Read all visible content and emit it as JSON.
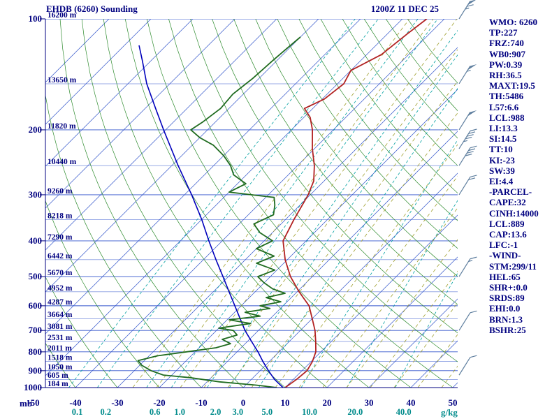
{
  "header": {
    "title": "EHDB (6260) Sounding",
    "datetime": "1200Z 11 DEC 25"
  },
  "axes": {
    "pressure_unit": "mb",
    "mixing_unit": "g/kg",
    "pressure_labels": [
      100,
      200,
      300,
      400,
      500,
      600,
      700,
      800,
      900,
      1000
    ],
    "altitude_labels": [
      {
        "p": 100,
        "m": "16200 m"
      },
      {
        "p": 150,
        "m": "13650 m"
      },
      {
        "p": 200,
        "m": "11820 m"
      },
      {
        "p": 250,
        "m": "10440 m"
      },
      {
        "p": 300,
        "m": "9260 m"
      },
      {
        "p": 350,
        "m": "8218 m"
      },
      {
        "p": 400,
        "m": "7290 m"
      },
      {
        "p": 450,
        "m": "6442 m"
      },
      {
        "p": 500,
        "m": "5670 m"
      },
      {
        "p": 550,
        "m": "4952 m"
      },
      {
        "p": 600,
        "m": "4287 m"
      },
      {
        "p": 650,
        "m": "3664 m"
      },
      {
        "p": 700,
        "m": "3081 m"
      },
      {
        "p": 750,
        "m": "2531 m"
      },
      {
        "p": 800,
        "m": "2011 m"
      },
      {
        "p": 850,
        "m": "1518 m"
      },
      {
        "p": 900,
        "m": "1050 m"
      },
      {
        "p": 950,
        "m": "605 m"
      },
      {
        "p": 1000,
        "m": "184 m"
      }
    ],
    "temp_labels": [
      -50,
      -40,
      -30,
      -20,
      -10,
      0,
      10,
      20,
      30,
      40,
      50
    ],
    "mixing_labels": [
      "0.1",
      "0.2",
      "0.6",
      "1.0",
      "2.0",
      "3.0",
      "5.0",
      "10.0",
      "20.0",
      "40.0"
    ]
  },
  "indices": {
    "lines": [
      "WMO: 6260",
      "TP:227",
      "FRZ:740",
      "WB0:907",
      "PW:0.39",
      "RH:36.5",
      "MAXT:19.5",
      "TH:5486",
      "L57:6.6",
      "LCL:988",
      "LI:13.3",
      "SI:14.5",
      "TT:10",
      "KI:-23",
      "SW:39",
      "EI:4.4",
      "-PARCEL-",
      "CAPE:32",
      "CINH:14000",
      "LCL:889",
      "CAP:13.6",
      "LFC:-1",
      "-WIND-",
      "STM:299/11",
      "HEL:65",
      "SHR+:0.0",
      "SRDS:89",
      "EHI:0.0",
      "BRN:1.3",
      "BSHR:25"
    ]
  },
  "colors": {
    "text_navy": "#000080",
    "grid_blue": "#3355cc",
    "isotherm_blue": "#3355cc",
    "dry_adiabat_green": "#2d8b2d",
    "mixing_cyan": "#00a0a0",
    "mixing_label_teal": "#008b8b",
    "moist_guide_olive": "#a0a030",
    "temperature_red": "#b22222",
    "dewpoint_green": "#1f6b1f",
    "parcel_blue": "#0000bb",
    "barb": "#5f7f9f"
  },
  "chart_data": {
    "type": "line",
    "subtype": "skewt-log-p-sounding",
    "title": "EHDB (6260) Sounding",
    "valid_time": "1200Z 11 DEC 25",
    "pressure_range_mb": [
      100,
      1000
    ],
    "surface_temp_axis_range_c": [
      -50,
      50
    ],
    "skew_deg": 45,
    "isotherm_step_c": 10,
    "isotherm_range_c": [
      -120,
      50
    ],
    "dry_adiabat_thetaC": {
      "from": -50,
      "to": 160,
      "step": 10
    },
    "mixing_ratio_lines_gkg": [
      0.1,
      0.2,
      0.6,
      1.0,
      2.0,
      3.0,
      5.0,
      10.0,
      20.0,
      40.0
    ],
    "series": {
      "temperature_p_t": [
        [
          1000,
          10
        ],
        [
          950,
          10.8
        ],
        [
          900,
          11.2
        ],
        [
          850,
          10.3
        ],
        [
          800,
          8.8
        ],
        [
          750,
          6.3
        ],
        [
          700,
          3.5
        ],
        [
          650,
          0
        ],
        [
          600,
          -3.8
        ],
        [
          550,
          -9.5
        ],
        [
          500,
          -15.2
        ],
        [
          450,
          -20.5
        ],
        [
          400,
          -25.5
        ],
        [
          350,
          -28
        ],
        [
          300,
          -30.5
        ],
        [
          275,
          -32.5
        ],
        [
          250,
          -36
        ],
        [
          225,
          -40.5
        ],
        [
          200,
          -45
        ],
        [
          185,
          -48.5
        ],
        [
          175,
          -52
        ],
        [
          165,
          -49.5
        ],
        [
          150,
          -48.5
        ],
        [
          138,
          -50
        ],
        [
          125,
          -46.5
        ],
        [
          110,
          -45.3
        ],
        [
          100,
          -44.2
        ]
      ],
      "dewpoint_p_t": [
        [
          1000,
          8
        ],
        [
          985,
          2.5
        ],
        [
          965,
          -7
        ],
        [
          940,
          -15
        ],
        [
          925,
          -22
        ],
        [
          900,
          -26
        ],
        [
          870,
          -29.5
        ],
        [
          845,
          -31.5
        ],
        [
          820,
          -28
        ],
        [
          800,
          -22
        ],
        [
          780,
          -16
        ],
        [
          760,
          -13.5
        ],
        [
          740,
          -16.5
        ],
        [
          720,
          -14
        ],
        [
          700,
          -16
        ],
        [
          690,
          -20
        ],
        [
          670,
          -13.5
        ],
        [
          655,
          -19.5
        ],
        [
          640,
          -13
        ],
        [
          625,
          -17.5
        ],
        [
          610,
          -12.5
        ],
        [
          600,
          -15.5
        ],
        [
          585,
          -11.5
        ],
        [
          570,
          -16
        ],
        [
          555,
          -12.5
        ],
        [
          540,
          -16.5
        ],
        [
          520,
          -20
        ],
        [
          500,
          -23
        ],
        [
          480,
          -20.5
        ],
        [
          460,
          -26.5
        ],
        [
          440,
          -24
        ],
        [
          420,
          -30
        ],
        [
          400,
          -28
        ],
        [
          380,
          -33
        ],
        [
          360,
          -36.5
        ],
        [
          340,
          -34
        ],
        [
          320,
          -36
        ],
        [
          305,
          -38
        ],
        [
          295,
          -50
        ],
        [
          280,
          -48
        ],
        [
          265,
          -53
        ],
        [
          250,
          -56
        ],
        [
          235,
          -60
        ],
        [
          220,
          -65
        ],
        [
          210,
          -70
        ],
        [
          200,
          -74
        ],
        [
          190,
          -73
        ],
        [
          175,
          -72
        ],
        [
          160,
          -72.5
        ],
        [
          145,
          -71.5
        ],
        [
          130,
          -71
        ],
        [
          120,
          -70.5
        ],
        [
          112,
          -70
        ]
      ],
      "parcel_p_t": [
        [
          1000,
          9.5
        ],
        [
          950,
          5.5
        ],
        [
          900,
          2
        ],
        [
          850,
          -1.5
        ],
        [
          800,
          -5
        ],
        [
          750,
          -9
        ],
        [
          700,
          -13.2
        ],
        [
          650,
          -17.2
        ],
        [
          600,
          -21.5
        ],
        [
          550,
          -26.2
        ],
        [
          500,
          -31.3
        ],
        [
          450,
          -37
        ],
        [
          400,
          -43.2
        ],
        [
          350,
          -50
        ],
        [
          300,
          -58.3
        ],
        [
          250,
          -68.5
        ],
        [
          200,
          -80.5
        ],
        [
          175,
          -87.5
        ],
        [
          150,
          -95.5
        ],
        [
          130,
          -102
        ],
        [
          118,
          -106.5
        ]
      ]
    },
    "wind_barbs": [
      {
        "p": 100,
        "kt": 65,
        "dir": 300
      },
      {
        "p": 150,
        "kt": 55,
        "dir": 300
      },
      {
        "p": 200,
        "kt": 50,
        "dir": 300
      },
      {
        "p": 225,
        "kt": 45,
        "dir": 300
      },
      {
        "p": 250,
        "kt": 40,
        "dir": 300
      },
      {
        "p": 300,
        "kt": 20,
        "dir": 300
      },
      {
        "p": 500,
        "kt": 15,
        "dir": 300
      },
      {
        "p": 700,
        "kt": 10,
        "dir": 300
      },
      {
        "p": 925,
        "kt": 10,
        "dir": 300
      }
    ],
    "legend_position": "none",
    "grid": true
  }
}
